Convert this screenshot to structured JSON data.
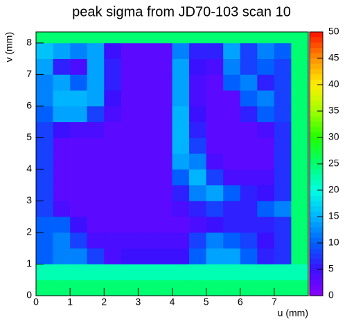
{
  "chart_data": {
    "type": "heatmap",
    "title": "peak sigma from JD70-103 scan 10",
    "xlabel": "u (mm)",
    "ylabel": "v (mm)",
    "xlim": [
      0,
      8
    ],
    "ylim": [
      0,
      8.35
    ],
    "zlim": [
      0,
      50
    ],
    "xticks": [
      0,
      1,
      2,
      3,
      4,
      5,
      6,
      7
    ],
    "yticks": [
      0,
      1,
      2,
      3,
      4,
      5,
      6,
      7,
      8
    ],
    "zticks": [
      0,
      5,
      10,
      15,
      20,
      25,
      30,
      35,
      40,
      45,
      50
    ],
    "colorscale": [
      "#8c00ff",
      "#3a10ff",
      "#0060ff",
      "#00b4ff",
      "#00ffe0",
      "#00ff70",
      "#20ff00",
      "#a0ff00",
      "#ffee00",
      "#ff9000",
      "#ff1000"
    ],
    "xbins": [
      0,
      0.5,
      1,
      1.5,
      2,
      2.5,
      3,
      3.5,
      4,
      4.5,
      5,
      5.5,
      6,
      6.5,
      7,
      7.5,
      8
    ],
    "ybins": [
      0,
      0.5,
      1,
      1.5,
      2,
      2.5,
      3,
      3.5,
      4,
      4.5,
      5,
      5.5,
      6,
      6.5,
      7,
      7.5,
      8,
      8.35
    ],
    "z": [
      [
        25,
        25,
        25,
        25,
        25,
        25,
        25,
        25,
        25,
        25,
        25,
        25,
        25,
        25,
        25,
        25
      ],
      [
        22,
        22,
        22,
        22,
        22,
        22,
        22,
        22,
        22,
        22,
        22,
        22,
        22,
        22,
        22,
        22
      ],
      [
        10,
        12,
        12,
        8,
        4,
        5,
        5,
        5,
        5,
        10,
        14,
        14,
        10,
        6,
        7,
        25
      ],
      [
        10,
        12,
        8,
        4,
        4,
        4,
        4,
        4,
        4,
        8,
        12,
        10,
        8,
        5,
        7,
        25
      ],
      [
        10,
        10,
        5,
        3,
        3,
        3,
        3,
        3,
        3,
        4,
        5,
        6,
        6,
        6,
        7,
        25
      ],
      [
        8,
        4,
        3,
        3,
        3,
        3,
        3,
        3,
        4,
        6,
        8,
        6,
        6,
        10,
        12,
        25
      ],
      [
        8,
        3,
        3,
        3,
        3,
        3,
        3,
        3,
        6,
        12,
        14,
        10,
        6,
        5,
        7,
        25
      ],
      [
        8,
        3,
        3,
        3,
        3,
        3,
        3,
        3,
        10,
        15,
        8,
        4,
        4,
        4,
        7,
        25
      ],
      [
        8,
        3,
        3,
        3,
        3,
        3,
        3,
        3,
        14,
        12,
        4,
        3,
        3,
        3,
        7,
        25
      ],
      [
        8,
        3,
        3,
        3,
        3,
        3,
        3,
        3,
        15,
        8,
        3,
        3,
        3,
        3,
        7,
        25
      ],
      [
        8,
        5,
        4,
        4,
        3,
        3,
        3,
        3,
        15,
        6,
        3,
        3,
        3,
        4,
        7,
        25
      ],
      [
        10,
        14,
        14,
        8,
        4,
        3,
        3,
        3,
        15,
        5,
        3,
        3,
        6,
        10,
        8,
        25
      ],
      [
        12,
        15,
        15,
        14,
        5,
        3,
        3,
        3,
        14,
        4,
        3,
        3,
        10,
        12,
        8,
        25
      ],
      [
        12,
        14,
        10,
        14,
        6,
        3,
        3,
        3,
        14,
        4,
        3,
        10,
        12,
        6,
        8,
        25
      ],
      [
        14,
        6,
        4,
        14,
        6,
        3,
        3,
        3,
        14,
        5,
        4,
        12,
        8,
        10,
        8,
        25
      ],
      [
        16,
        14,
        12,
        14,
        5,
        3,
        3,
        3,
        12,
        6,
        6,
        14,
        8,
        12,
        10,
        25
      ],
      [
        25,
        25,
        25,
        25,
        25,
        25,
        25,
        25,
        25,
        25,
        25,
        25,
        25,
        25,
        25,
        25
      ]
    ]
  }
}
